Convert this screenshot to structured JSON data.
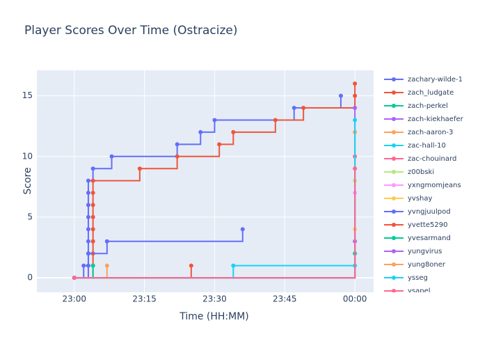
{
  "chart_data": {
    "type": "step-line",
    "title": "Player Scores Over Time (Ostracize)",
    "x_label": "Time (HH:MM)",
    "y_label": "Score",
    "xlim": [
      "22:52",
      "00:04"
    ],
    "xticks": [
      "23:00",
      "23:15",
      "23:30",
      "23:45",
      "00:00"
    ],
    "ylim": [
      -1.2,
      17.1
    ],
    "yticks": [
      0,
      5,
      10,
      15
    ],
    "grid": true,
    "legend": "right",
    "series": [
      {
        "name": "zachary-wilde-1",
        "color": "#636efa",
        "x": [
          "23:00",
          "23:02",
          "23:03",
          "23:03",
          "23:03",
          "23:03",
          "23:03",
          "23:03",
          "23:03",
          "23:04",
          "23:08",
          "23:22",
          "23:27",
          "23:30",
          "23:47",
          "23:57"
        ],
        "values": [
          0,
          1,
          2,
          3,
          4,
          5,
          6,
          7,
          8,
          9,
          10,
          11,
          12,
          13,
          14,
          15
        ]
      },
      {
        "name": "zach_ludgate",
        "color": "#ef553b",
        "x": [
          "23:00",
          "23:04",
          "23:04",
          "23:04",
          "23:04",
          "23:04",
          "23:04",
          "23:04",
          "23:04",
          "23:14",
          "23:22",
          "23:31",
          "23:34",
          "23:43",
          "23:49",
          "00:00",
          "00:00"
        ],
        "values": [
          0,
          1,
          2,
          3,
          4,
          5,
          6,
          7,
          8,
          9,
          10,
          11,
          12,
          13,
          14,
          15,
          16
        ]
      },
      {
        "name": "zach-perkel",
        "color": "#00cc96",
        "x": [
          "23:00",
          "23:04"
        ],
        "values": [
          0,
          1
        ]
      },
      {
        "name": "zach-kiekhaefer",
        "color": "#ab63fa",
        "x": [
          "23:00",
          "00:00"
        ],
        "values": [
          0,
          3
        ]
      },
      {
        "name": "zach-aaron-3",
        "color": "#ffa15a",
        "x": [
          "23:00",
          "23:07"
        ],
        "values": [
          0,
          1
        ]
      },
      {
        "name": "zac-hall-10",
        "color": "#19d3f3",
        "x": [
          "23:00",
          "23:34",
          "00:00"
        ],
        "values": [
          0,
          1,
          1
        ]
      },
      {
        "name": "zac-chouinard",
        "color": "#ff6692",
        "x": [
          "23:00",
          "00:00"
        ],
        "values": [
          0,
          10
        ]
      },
      {
        "name": "z00bski",
        "color": "#b6e880",
        "x": [
          "23:00",
          "00:00"
        ],
        "values": [
          0,
          8
        ]
      },
      {
        "name": "yxngmomjeans",
        "color": "#ff97ff",
        "x": [
          "23:00",
          "00:00"
        ],
        "values": [
          0,
          7
        ]
      },
      {
        "name": "yvshay",
        "color": "#fecb52",
        "x": [
          "23:00",
          "00:00"
        ],
        "values": [
          0,
          4
        ]
      },
      {
        "name": "yvngjuulpod",
        "color": "#636efa",
        "x": [
          "23:00",
          "23:03",
          "23:03",
          "23:07",
          "23:36"
        ],
        "values": [
          0,
          1,
          2,
          3,
          4
        ]
      },
      {
        "name": "yvette5290",
        "color": "#ef553b",
        "x": [
          "23:00",
          "23:25"
        ],
        "values": [
          0,
          1
        ]
      },
      {
        "name": "yvesarmand",
        "color": "#00cc96",
        "x": [
          "23:00",
          "00:00"
        ],
        "values": [
          0,
          2
        ]
      },
      {
        "name": "yungvirus",
        "color": "#ab63fa",
        "x": [
          "23:00",
          "00:00"
        ],
        "values": [
          0,
          14
        ]
      },
      {
        "name": "yung8oner",
        "color": "#ffa15a",
        "x": [
          "23:00",
          "00:00"
        ],
        "values": [
          0,
          12
        ]
      },
      {
        "name": "ysseg",
        "color": "#19d3f3",
        "x": [
          "23:00",
          "00:00"
        ],
        "values": [
          0,
          13
        ]
      },
      {
        "name": "ysapel",
        "color": "#ff6692",
        "x": [
          "23:00",
          "00:00"
        ],
        "values": [
          0,
          9
        ]
      }
    ]
  }
}
